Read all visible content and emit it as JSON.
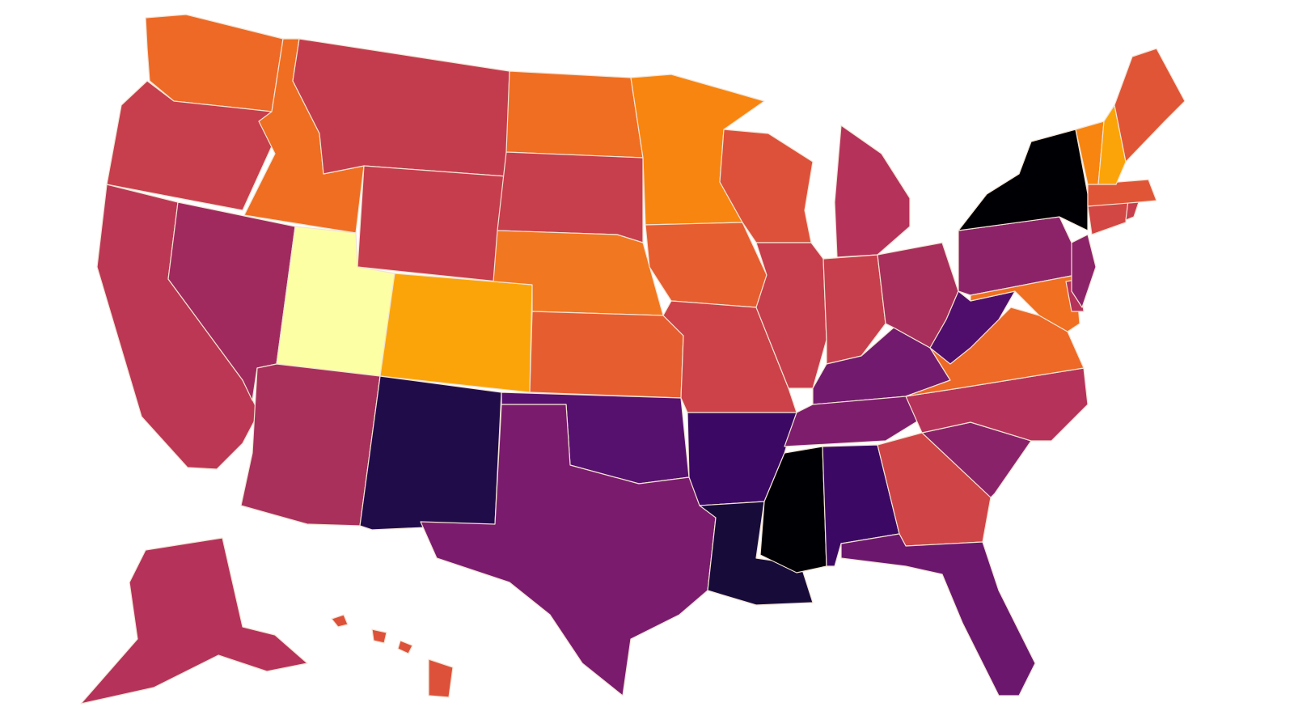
{
  "map": {
    "type": "choropleth",
    "region": "United States",
    "palette": "inferno",
    "background": "#ffffff",
    "border_color": "#f3e3d3"
  },
  "states": [
    {
      "code": "WA",
      "color": "#ed6925"
    },
    {
      "code": "OR",
      "color": "#c73e4c"
    },
    {
      "code": "CA",
      "color": "#bc3754"
    },
    {
      "code": "NV",
      "color": "#a02a5e"
    },
    {
      "code": "ID",
      "color": "#ef6e21"
    },
    {
      "code": "MT",
      "color": "#c33c4e"
    },
    {
      "code": "WY",
      "color": "#c63d4d"
    },
    {
      "code": "UT",
      "color": "#fcffa4"
    },
    {
      "code": "CO",
      "color": "#fba40a"
    },
    {
      "code": "AZ",
      "color": "#a8305b"
    },
    {
      "code": "NM",
      "color": "#210c4a"
    },
    {
      "code": "ND",
      "color": "#ef6e21"
    },
    {
      "code": "SD",
      "color": "#c73e4c"
    },
    {
      "code": "NE",
      "color": "#f17720"
    },
    {
      "code": "KS",
      "color": "#e65d30"
    },
    {
      "code": "OK",
      "color": "#56106e"
    },
    {
      "code": "TX",
      "color": "#7a1b6d"
    },
    {
      "code": "MN",
      "color": "#f8850f"
    },
    {
      "code": "IA",
      "color": "#e65d30"
    },
    {
      "code": "MO",
      "color": "#cc4248"
    },
    {
      "code": "AR",
      "color": "#3b0964"
    },
    {
      "code": "LA",
      "color": "#160b39"
    },
    {
      "code": "WI",
      "color": "#dd513a"
    },
    {
      "code": "IL",
      "color": "#c73e4c"
    },
    {
      "code": "MS",
      "color": "#000004"
    },
    {
      "code": "MI",
      "color": "#b5325a"
    },
    {
      "code": "IN",
      "color": "#c73e4c"
    },
    {
      "code": "KY",
      "color": "#721a6e"
    },
    {
      "code": "TN",
      "color": "#7e1d6c"
    },
    {
      "code": "AL",
      "color": "#3b0964"
    },
    {
      "code": "OH",
      "color": "#a82f5b"
    },
    {
      "code": "GA",
      "color": "#cf4446"
    },
    {
      "code": "FL",
      "color": "#6b176e"
    },
    {
      "code": "SC",
      "color": "#8a226a"
    },
    {
      "code": "NC",
      "color": "#b5325a"
    },
    {
      "code": "VA",
      "color": "#ed6925"
    },
    {
      "code": "WV",
      "color": "#500e6c"
    },
    {
      "code": "PA",
      "color": "#8c2369"
    },
    {
      "code": "MD",
      "color": "#f06f20"
    },
    {
      "code": "DE",
      "color": "#b5325a"
    },
    {
      "code": "NJ",
      "color": "#8c2369"
    },
    {
      "code": "NY",
      "color": "#000004"
    },
    {
      "code": "CT",
      "color": "#d24644"
    },
    {
      "code": "RI",
      "color": "#c73e4c"
    },
    {
      "code": "MA",
      "color": "#e05536"
    },
    {
      "code": "VT",
      "color": "#f8850f"
    },
    {
      "code": "NH",
      "color": "#fba40a"
    },
    {
      "code": "ME",
      "color": "#e05536"
    },
    {
      "code": "AK",
      "color": "#b5325a"
    },
    {
      "code": "HI",
      "color": "#dd513a"
    }
  ]
}
